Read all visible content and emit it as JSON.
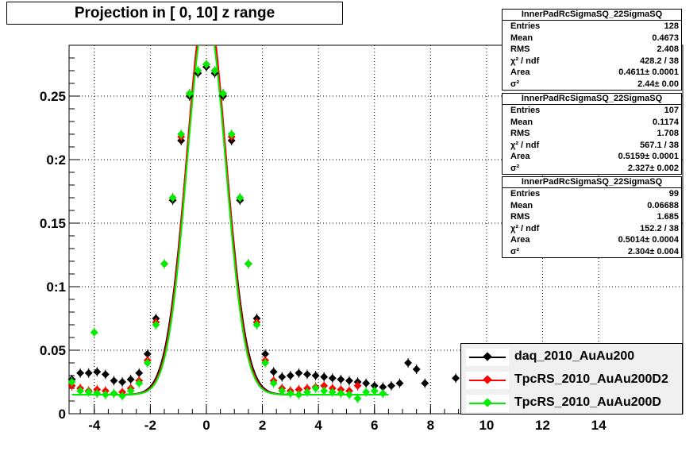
{
  "title": "Projection in [   0,  10] z range",
  "stats_boxes": [
    {
      "title": "InnerPadRcSigmaSQ_22SigmaSQ",
      "rows": [
        [
          "Entries",
          "128"
        ],
        [
          "Mean",
          "0.4673"
        ],
        [
          "RMS",
          "2.408"
        ],
        [
          "χ² / ndf",
          "428.2 / 38"
        ],
        [
          "Area",
          "0.4611± 0.0001"
        ],
        [
          "σ²",
          "2.44± 0.00"
        ]
      ]
    },
    {
      "title": "InnerPadRcSigmaSQ_22SigmaSQ",
      "rows": [
        [
          "Entries",
          "107"
        ],
        [
          "Mean",
          "0.1174"
        ],
        [
          "RMS",
          "1.708"
        ],
        [
          "χ² / ndf",
          "567.1 / 38"
        ],
        [
          "Area",
          "0.5159± 0.0001"
        ],
        [
          "σ²",
          "2.327± 0.002"
        ]
      ]
    },
    {
      "title": "InnerPadRcSigmaSQ_22SigmaSQ",
      "rows": [
        [
          "Entries",
          "99"
        ],
        [
          "Mean",
          "0.06688"
        ],
        [
          "RMS",
          "1.685"
        ],
        [
          "χ² / ndf",
          "152.2 / 38"
        ],
        [
          "Area",
          "0.5014± 0.0004"
        ],
        [
          "σ²",
          "2.304± 0.004"
        ]
      ]
    }
  ],
  "legend": [
    {
      "label": "daq_2010_AuAu200",
      "color": "#000000"
    },
    {
      "label": "TpcRS_2010_AuAu200D2",
      "color": "#ff0000"
    },
    {
      "label": "TpcRS_2010_AuAu200D",
      "color": "#00ee00"
    }
  ],
  "chart_data": {
    "type": "scatter",
    "title": "Projection in [   0,  10] z range",
    "xlim": [
      -4.9,
      17
    ],
    "ylim": [
      0,
      0.29
    ],
    "x_ticks": [
      -4,
      -2,
      0,
      2,
      4,
      6,
      8,
      10,
      12,
      14
    ],
    "y_ticks": [
      0,
      0.05,
      0.1,
      0.15,
      0.2,
      0.25
    ],
    "y_tick_labels": [
      "0",
      "0.05",
      "0:1",
      "0.15",
      "0:2",
      "0.25"
    ],
    "grid": true,
    "series": [
      {
        "name": "daq_2010_AuAu200",
        "color": "#000000",
        "x": [
          -4.8,
          -4.5,
          -4.2,
          -3.9,
          -3.6,
          -3.3,
          -3.0,
          -2.7,
          -2.4,
          -2.1,
          -1.8,
          -1.5,
          -1.2,
          -0.9,
          -0.6,
          -0.3,
          0.0,
          0.3,
          0.6,
          0.9,
          1.2,
          1.5,
          1.8,
          2.1,
          2.4,
          2.7,
          3.0,
          3.3,
          3.6,
          3.9,
          4.2,
          4.5,
          4.8,
          5.1,
          5.4,
          5.7,
          6.0,
          6.3,
          6.6,
          6.9,
          7.2,
          7.5,
          7.8,
          8.9,
          9.5
        ],
        "y": [
          0.027,
          0.032,
          0.032,
          0.033,
          0.031,
          0.026,
          0.025,
          0.027,
          0.032,
          0.047,
          0.075,
          0.118,
          0.168,
          0.215,
          0.25,
          0.268,
          0.273,
          0.268,
          0.25,
          0.215,
          0.168,
          0.118,
          0.075,
          0.047,
          0.033,
          0.029,
          0.03,
          0.032,
          0.031,
          0.03,
          0.029,
          0.028,
          0.027,
          0.026,
          0.025,
          0.024,
          0.022,
          0.021,
          0.022,
          0.024,
          0.04,
          0.035,
          0.024,
          0.028,
          0.03
        ]
      },
      {
        "name": "TpcRS_2010_AuAu200D2",
        "color": "#ff0000",
        "x": [
          -4.8,
          -4.5,
          -4.2,
          -3.9,
          -3.6,
          -3.3,
          -3.0,
          -2.7,
          -2.4,
          -2.1,
          -1.8,
          -1.5,
          -1.2,
          -0.9,
          -0.6,
          -0.3,
          0.0,
          0.3,
          0.6,
          0.9,
          1.2,
          1.5,
          1.8,
          2.1,
          2.4,
          2.7,
          3.0,
          3.3,
          3.6,
          3.9,
          4.2,
          4.5,
          4.8,
          5.1,
          5.4
        ],
        "y": [
          0.022,
          0.02,
          0.018,
          0.019,
          0.018,
          0.016,
          0.017,
          0.02,
          0.026,
          0.042,
          0.072,
          0.118,
          0.17,
          0.218,
          0.252,
          0.27,
          0.275,
          0.27,
          0.252,
          0.218,
          0.17,
          0.118,
          0.072,
          0.042,
          0.026,
          0.02,
          0.018,
          0.019,
          0.02,
          0.021,
          0.022,
          0.02,
          0.019,
          0.018,
          0.022
        ]
      },
      {
        "name": "TpcRS_2010_AuAu200D",
        "color": "#00ee00",
        "x": [
          -4.8,
          -4.5,
          -4.2,
          -4.0,
          -3.9,
          -3.6,
          -3.3,
          -3.0,
          -2.7,
          -2.4,
          -2.1,
          -1.8,
          -1.5,
          -1.2,
          -0.9,
          -0.6,
          -0.3,
          0.0,
          0.3,
          0.6,
          0.9,
          1.2,
          1.5,
          1.8,
          2.1,
          2.4,
          2.7,
          3.0,
          3.3,
          3.6,
          3.9,
          4.2,
          4.5,
          4.8,
          5.1,
          5.4,
          5.7,
          6.0,
          6.3
        ],
        "y": [
          0.025,
          0.018,
          0.017,
          0.064,
          0.016,
          0.015,
          0.016,
          0.014,
          0.018,
          0.024,
          0.04,
          0.07,
          0.118,
          0.17,
          0.22,
          0.252,
          0.27,
          0.275,
          0.27,
          0.252,
          0.22,
          0.17,
          0.118,
          0.07,
          0.04,
          0.024,
          0.018,
          0.016,
          0.015,
          0.017,
          0.02,
          0.018,
          0.017,
          0.016,
          0.015,
          0.012,
          0.017,
          0.018,
          0.016
        ]
      }
    ],
    "fits": [
      {
        "color": "#000000",
        "sigma": 0.72,
        "peak": 0.3
      },
      {
        "color": "#ff0000",
        "sigma": 0.7,
        "peak": 0.31
      },
      {
        "color": "#00ee00",
        "sigma": 0.69,
        "peak": 0.3
      }
    ],
    "legend_position": "bottom-right"
  }
}
